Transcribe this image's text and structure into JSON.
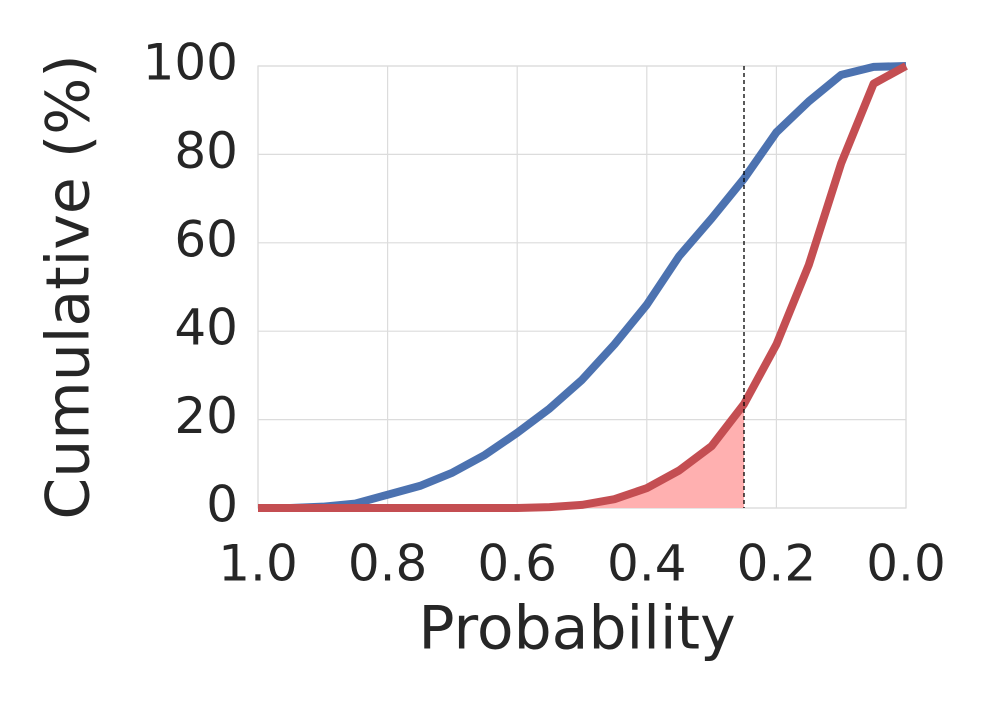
{
  "chart_data": {
    "type": "line",
    "x_label": "Probability",
    "y_label": "Cumulative (%)",
    "x": [
      1,
      0.95,
      0.9,
      0.85,
      0.8,
      0.75,
      0.7,
      0.65,
      0.6,
      0.55,
      0.5,
      0.45,
      0.4,
      0.35,
      0.3,
      0.25,
      0.2,
      0.15,
      0.1,
      0.05,
      0
    ],
    "series": [
      {
        "color": "#4c72b0",
        "values": [
          0,
          0,
          0.3,
          1,
          3,
          5,
          8,
          12,
          17,
          22.5,
          29,
          37,
          46,
          57,
          65.5,
          74.5,
          85,
          92,
          98,
          99.8,
          100
        ]
      },
      {
        "color": "#c44e52",
        "values": [
          0,
          0,
          0,
          0,
          0,
          0,
          0,
          0,
          0,
          0.2,
          0.7,
          2,
          4.5,
          8.5,
          14,
          23.5,
          37,
          55,
          78,
          96,
          100
        ]
      }
    ],
    "threshold": 0.25,
    "fill_color": "#ffb0b0",
    "xlim": [
      1,
      0
    ],
    "ylim": [
      0,
      100
    ],
    "xticks": [
      {
        "value": 1,
        "label": "1.0"
      },
      0.8,
      0.6,
      0.4,
      0.2,
      {
        "value": 0,
        "label": "0.0"
      }
    ],
    "yticks": [
      0,
      20,
      40,
      60,
      80,
      100
    ],
    "grid": true
  }
}
